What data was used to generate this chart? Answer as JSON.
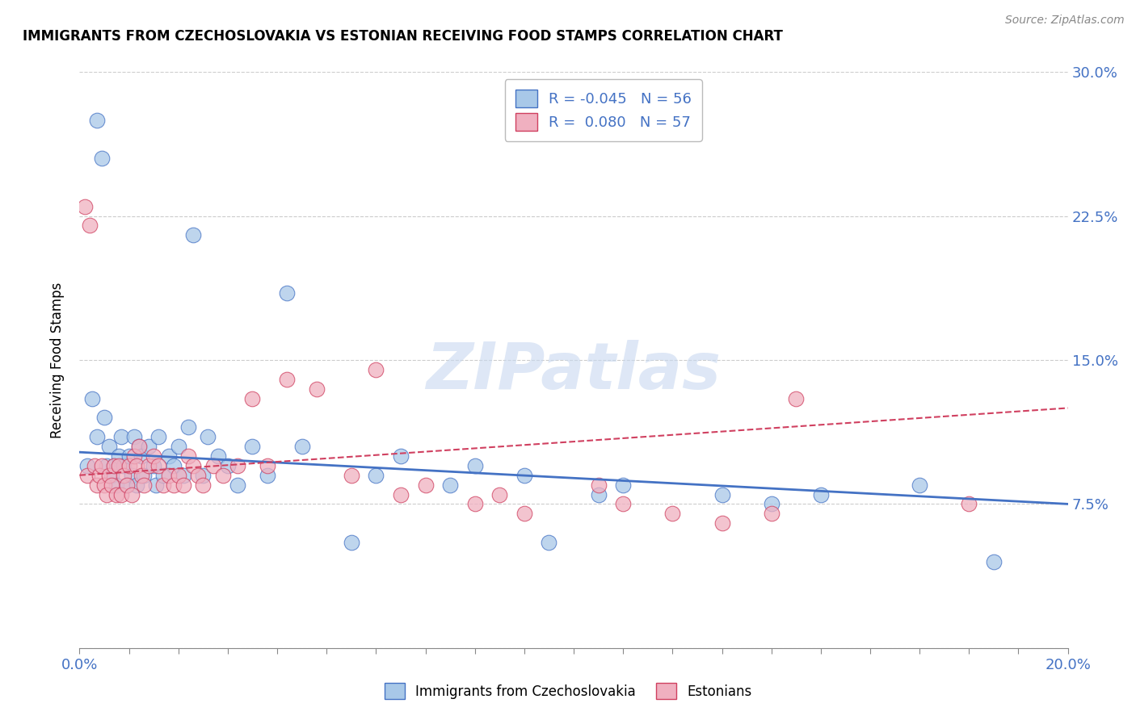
{
  "title": "IMMIGRANTS FROM CZECHOSLOVAKIA VS ESTONIAN RECEIVING FOOD STAMPS CORRELATION CHART",
  "source_text": "Source: ZipAtlas.com",
  "ylabel_text": "Receiving Food Stamps",
  "x_min": 0.0,
  "x_max": 20.0,
  "y_min": 0.0,
  "y_max": 30.0,
  "y_ticks": [
    0.0,
    7.5,
    15.0,
    22.5,
    30.0
  ],
  "x_ticks_major": [
    0.0,
    5.0,
    10.0,
    15.0,
    20.0
  ],
  "x_ticks_minor": [
    1.0,
    2.0,
    3.0,
    4.0,
    6.0,
    7.0,
    8.0,
    9.0,
    11.0,
    12.0,
    13.0,
    14.0,
    16.0,
    17.0,
    18.0,
    19.0
  ],
  "x_tick_labels": [
    "0.0%",
    "",
    "",
    "",
    "",
    "",
    "",
    "",
    "",
    "",
    "",
    "",
    "",
    "",
    "",
    "",
    "",
    "",
    "",
    "",
    "20.0%"
  ],
  "y_tick_labels_right": [
    "",
    "7.5%",
    "15.0%",
    "22.5%",
    "30.0%"
  ],
  "legend_label_blue": "Immigrants from Czechoslovakia",
  "legend_label_pink": "Estonians",
  "r_blue": -0.045,
  "n_blue": 56,
  "r_pink": 0.08,
  "n_pink": 57,
  "color_blue": "#a8c8e8",
  "color_pink": "#f0b0c0",
  "trend_color_blue": "#4472c4",
  "trend_color_pink": "#d04060",
  "axis_label_color": "#4472c4",
  "watermark": "ZIPatlas",
  "blue_x": [
    0.15,
    0.25,
    0.35,
    0.35,
    0.45,
    0.5,
    0.55,
    0.6,
    0.65,
    0.7,
    0.75,
    0.8,
    0.85,
    0.9,
    0.95,
    1.0,
    1.05,
    1.1,
    1.15,
    1.2,
    1.25,
    1.3,
    1.4,
    1.5,
    1.55,
    1.6,
    1.7,
    1.8,
    1.9,
    2.0,
    2.1,
    2.2,
    2.3,
    2.5,
    2.6,
    2.8,
    3.0,
    3.2,
    3.5,
    3.8,
    4.2,
    4.5,
    5.5,
    6.0,
    6.5,
    7.5,
    8.0,
    9.0,
    9.5,
    10.5,
    11.0,
    13.0,
    14.0,
    15.0,
    17.0,
    18.5
  ],
  "blue_y": [
    9.5,
    13.0,
    11.0,
    27.5,
    25.5,
    12.0,
    9.5,
    10.5,
    9.0,
    9.5,
    8.5,
    10.0,
    11.0,
    9.5,
    8.5,
    10.0,
    9.0,
    11.0,
    8.5,
    10.5,
    10.0,
    9.0,
    10.5,
    9.5,
    8.5,
    11.0,
    9.0,
    10.0,
    9.5,
    10.5,
    9.0,
    11.5,
    21.5,
    9.0,
    11.0,
    10.0,
    9.5,
    8.5,
    10.5,
    9.0,
    18.5,
    10.5,
    5.5,
    9.0,
    10.0,
    8.5,
    9.5,
    9.0,
    5.5,
    8.0,
    8.5,
    8.0,
    7.5,
    8.0,
    8.5,
    4.5
  ],
  "pink_x": [
    0.1,
    0.15,
    0.2,
    0.3,
    0.35,
    0.4,
    0.45,
    0.5,
    0.55,
    0.6,
    0.65,
    0.7,
    0.75,
    0.8,
    0.85,
    0.9,
    0.95,
    1.0,
    1.05,
    1.1,
    1.15,
    1.2,
    1.25,
    1.3,
    1.4,
    1.5,
    1.6,
    1.7,
    1.8,
    1.9,
    2.0,
    2.1,
    2.2,
    2.3,
    2.4,
    2.5,
    2.7,
    2.9,
    3.2,
    3.5,
    3.8,
    4.2,
    4.8,
    5.5,
    6.0,
    6.5,
    7.0,
    8.0,
    8.5,
    9.0,
    10.5,
    11.0,
    12.0,
    13.0,
    14.0,
    14.5,
    18.0
  ],
  "pink_y": [
    23.0,
    9.0,
    22.0,
    9.5,
    8.5,
    9.0,
    9.5,
    8.5,
    8.0,
    9.0,
    8.5,
    9.5,
    8.0,
    9.5,
    8.0,
    9.0,
    8.5,
    9.5,
    8.0,
    10.0,
    9.5,
    10.5,
    9.0,
    8.5,
    9.5,
    10.0,
    9.5,
    8.5,
    9.0,
    8.5,
    9.0,
    8.5,
    10.0,
    9.5,
    9.0,
    8.5,
    9.5,
    9.0,
    9.5,
    13.0,
    9.5,
    14.0,
    13.5,
    9.0,
    14.5,
    8.0,
    8.5,
    7.5,
    8.0,
    7.0,
    8.5,
    7.5,
    7.0,
    6.5,
    7.0,
    13.0,
    7.5
  ]
}
